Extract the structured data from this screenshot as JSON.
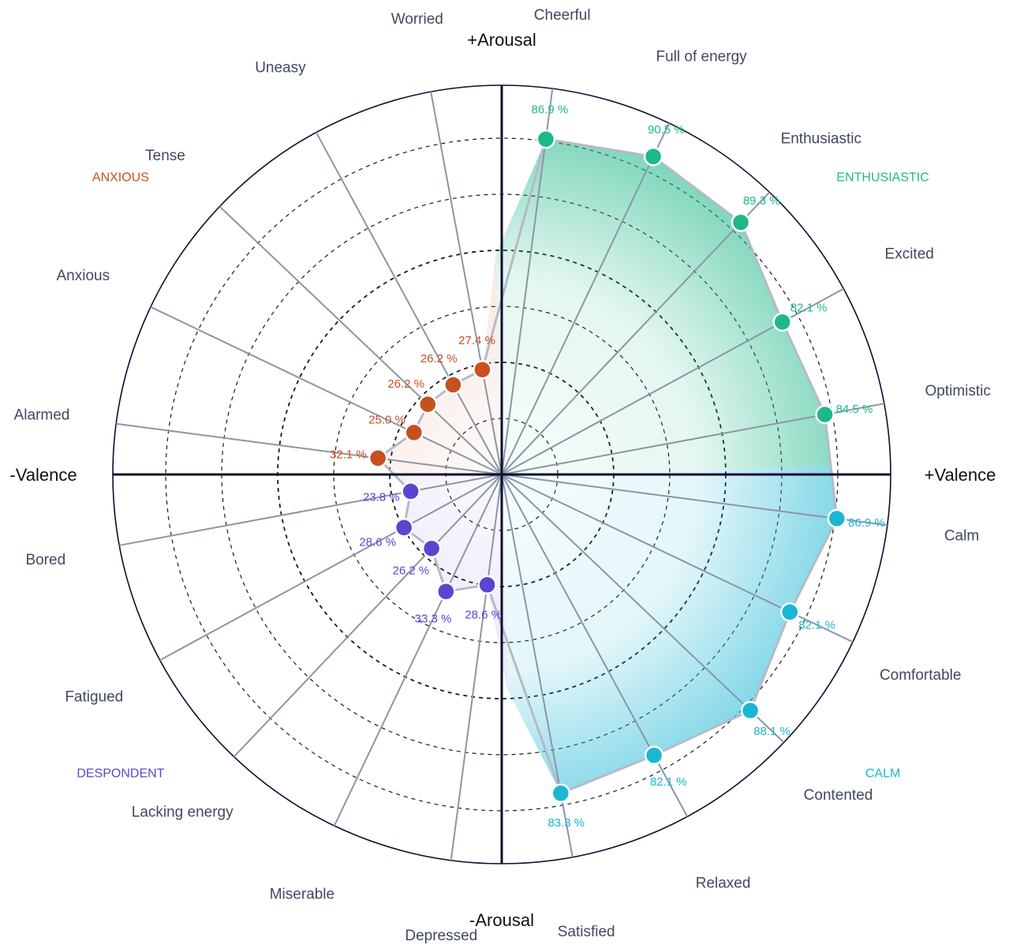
{
  "chart_data": {
    "type": "radar",
    "axis_labels": {
      "top": "+Arousal",
      "bottom": "-Arousal",
      "left": "-Valence",
      "right": "+Valence"
    },
    "groups": [
      {
        "key": "enthusiastic",
        "label": "ENTHUSIASTIC",
        "color": "#1fb888"
      },
      {
        "key": "calm",
        "label": "CALM",
        "color": "#1bb6d4"
      },
      {
        "key": "despondent",
        "label": "DESPONDENT",
        "color": "#5b45cf"
      },
      {
        "key": "anxious",
        "label": "ANXIOUS",
        "color": "#c84f20"
      }
    ],
    "value_unit": "%",
    "emotions": [
      {
        "label": "Cheerful",
        "value": 86.9,
        "group": "enthusiastic"
      },
      {
        "label": "Full of energy",
        "value": 90.5,
        "group": "enthusiastic"
      },
      {
        "label": "Enthusiastic",
        "value": 89.3,
        "group": "enthusiastic"
      },
      {
        "label": "Excited",
        "value": 82.1,
        "group": "enthusiastic"
      },
      {
        "label": "Optimistic",
        "value": 84.5,
        "group": "enthusiastic"
      },
      {
        "label": "Calm",
        "value": 86.9,
        "group": "calm"
      },
      {
        "label": "Comfortable",
        "value": 82.1,
        "group": "calm"
      },
      {
        "label": "Contented",
        "value": 88.1,
        "group": "calm"
      },
      {
        "label": "Relaxed",
        "value": 82.1,
        "group": "calm"
      },
      {
        "label": "Satisfied",
        "value": 83.3,
        "group": "calm"
      },
      {
        "label": "Depressed",
        "value": 28.6,
        "group": "despondent"
      },
      {
        "label": "Miserable",
        "value": 33.3,
        "group": "despondent"
      },
      {
        "label": "Lacking energy",
        "value": 26.2,
        "group": "despondent"
      },
      {
        "label": "Fatigued",
        "value": 28.6,
        "group": "despondent"
      },
      {
        "label": "Bored",
        "value": 23.8,
        "group": "despondent"
      },
      {
        "label": "Alarmed",
        "value": 32.1,
        "group": "anxious"
      },
      {
        "label": "Anxious",
        "value": 25.0,
        "group": "anxious"
      },
      {
        "label": "Tense",
        "value": 26.2,
        "group": "anxious"
      },
      {
        "label": "Uneasy",
        "value": 26.2,
        "group": "anxious"
      },
      {
        "label": "Worried",
        "value": 27.4,
        "group": "anxious"
      }
    ],
    "radial_range": [
      0,
      100
    ],
    "grid": true
  }
}
